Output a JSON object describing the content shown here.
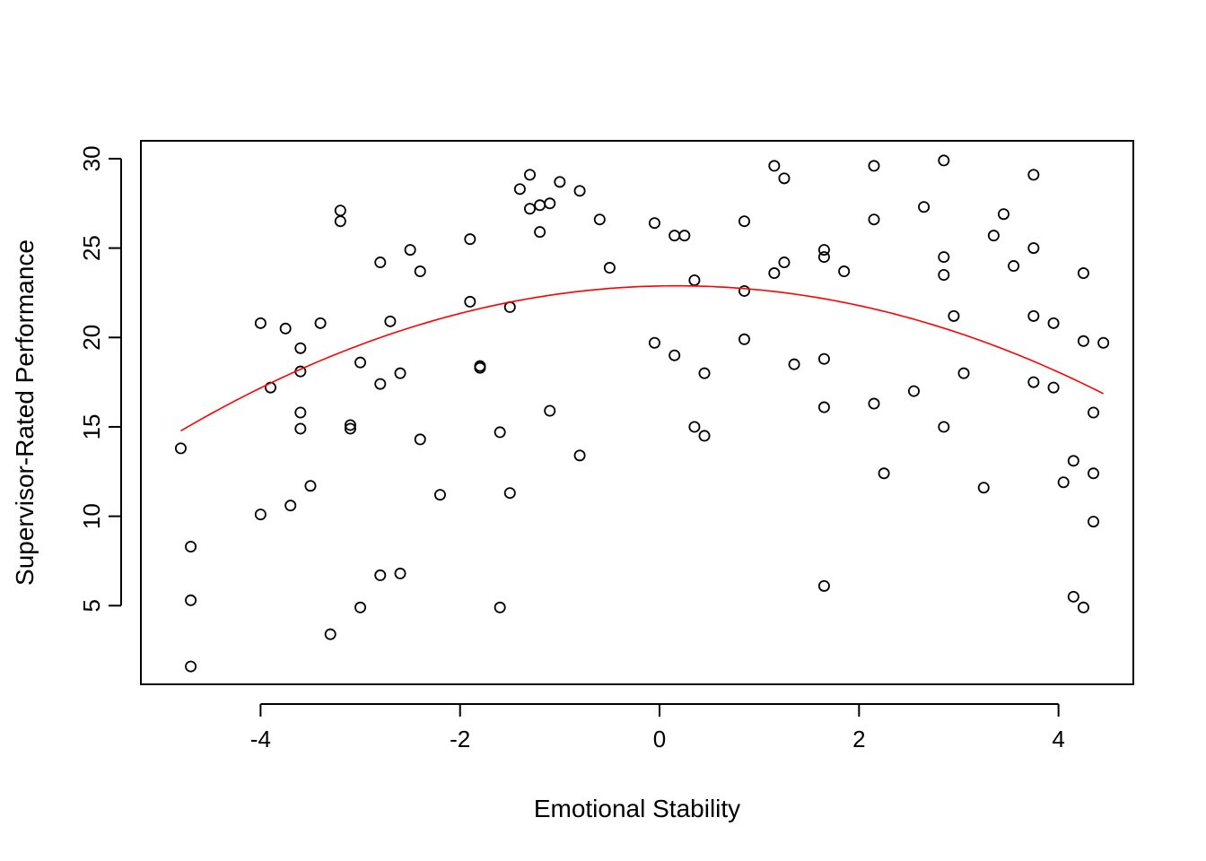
{
  "chart_data": {
    "type": "scatter",
    "xlabel": "Emotional Stability",
    "ylabel": "Supervisor-Rated Performance",
    "xlim": [
      -5.2,
      4.75
    ],
    "ylim": [
      0.6,
      31.0
    ],
    "x_ticks": [
      -4,
      -2,
      0,
      2,
      4
    ],
    "x_tick_labels": [
      "-4",
      "-2",
      "0",
      "2",
      "4"
    ],
    "y_ticks": [
      5,
      10,
      15,
      20,
      25,
      30
    ],
    "y_tick_labels": [
      "5",
      "10",
      "15",
      "20",
      "25",
      "30"
    ],
    "grid": false,
    "legend": "none",
    "colors": {
      "points": "#000000",
      "fit_line": "#ff0000",
      "frame": "#000000",
      "background": "#ffffff"
    },
    "points": [
      [
        -4.8,
        13.8
      ],
      [
        -4.7,
        8.3
      ],
      [
        -4.7,
        5.3
      ],
      [
        -4.7,
        1.6
      ],
      [
        -4.0,
        20.8
      ],
      [
        -4.0,
        10.1
      ],
      [
        -3.9,
        17.2
      ],
      [
        -3.75,
        20.5
      ],
      [
        -3.7,
        10.6
      ],
      [
        -3.6,
        19.4
      ],
      [
        -3.6,
        18.1
      ],
      [
        -3.6,
        15.8
      ],
      [
        -3.6,
        14.9
      ],
      [
        -3.5,
        11.7
      ],
      [
        -3.4,
        20.8
      ],
      [
        -3.3,
        3.4
      ],
      [
        -3.2,
        27.1
      ],
      [
        -3.2,
        26.5
      ],
      [
        -3.1,
        15.1
      ],
      [
        -3.1,
        14.9
      ],
      [
        -3.0,
        18.6
      ],
      [
        -3.0,
        4.9
      ],
      [
        -2.8,
        24.2
      ],
      [
        -2.8,
        17.4
      ],
      [
        -2.8,
        6.7
      ],
      [
        -2.7,
        20.9
      ],
      [
        -2.6,
        18.0
      ],
      [
        -2.6,
        6.8
      ],
      [
        -2.5,
        24.9
      ],
      [
        -2.4,
        23.7
      ],
      [
        -2.4,
        14.3
      ],
      [
        -2.2,
        11.2
      ],
      [
        -1.9,
        25.5
      ],
      [
        -1.9,
        22.0
      ],
      [
        -1.8,
        18.4
      ],
      [
        -1.8,
        18.3
      ],
      [
        -1.6,
        14.7
      ],
      [
        -1.6,
        4.9
      ],
      [
        -1.5,
        21.7
      ],
      [
        -1.5,
        11.3
      ],
      [
        -1.4,
        28.3
      ],
      [
        -1.3,
        29.1
      ],
      [
        -1.3,
        27.2
      ],
      [
        -1.2,
        27.4
      ],
      [
        -1.2,
        25.9
      ],
      [
        -1.1,
        27.5
      ],
      [
        -1.1,
        15.9
      ],
      [
        -1.0,
        28.7
      ],
      [
        -0.8,
        28.2
      ],
      [
        -0.8,
        13.4
      ],
      [
        -0.6,
        26.6
      ],
      [
        -0.5,
        23.9
      ],
      [
        -0.05,
        26.4
      ],
      [
        -0.05,
        19.7
      ],
      [
        0.15,
        25.7
      ],
      [
        0.15,
        19.0
      ],
      [
        0.25,
        25.7
      ],
      [
        0.35,
        23.2
      ],
      [
        0.35,
        15.0
      ],
      [
        0.45,
        18.0
      ],
      [
        0.45,
        14.5
      ],
      [
        0.85,
        26.5
      ],
      [
        0.85,
        22.6
      ],
      [
        0.85,
        19.9
      ],
      [
        1.15,
        29.6
      ],
      [
        1.15,
        23.6
      ],
      [
        1.25,
        28.9
      ],
      [
        1.25,
        24.2
      ],
      [
        1.35,
        18.5
      ],
      [
        1.65,
        24.9
      ],
      [
        1.65,
        24.5
      ],
      [
        1.65,
        18.8
      ],
      [
        1.65,
        16.1
      ],
      [
        1.65,
        6.1
      ],
      [
        1.85,
        23.7
      ],
      [
        2.15,
        29.6
      ],
      [
        2.15,
        26.6
      ],
      [
        2.15,
        16.3
      ],
      [
        2.25,
        12.4
      ],
      [
        2.55,
        17.0
      ],
      [
        2.65,
        27.3
      ],
      [
        2.85,
        29.9
      ],
      [
        2.85,
        24.5
      ],
      [
        2.85,
        23.5
      ],
      [
        2.85,
        15.0
      ],
      [
        2.95,
        21.2
      ],
      [
        3.05,
        18.0
      ],
      [
        3.25,
        11.6
      ],
      [
        3.35,
        25.7
      ],
      [
        3.45,
        26.9
      ],
      [
        3.55,
        24.0
      ],
      [
        3.75,
        29.1
      ],
      [
        3.75,
        25.0
      ],
      [
        3.75,
        21.2
      ],
      [
        3.75,
        17.5
      ],
      [
        3.95,
        20.8
      ],
      [
        3.95,
        17.2
      ],
      [
        4.05,
        11.9
      ],
      [
        4.15,
        13.1
      ],
      [
        4.15,
        5.5
      ],
      [
        4.25,
        23.6
      ],
      [
        4.25,
        19.8
      ],
      [
        4.25,
        4.9
      ],
      [
        4.35,
        15.8
      ],
      [
        4.35,
        12.4
      ],
      [
        4.35,
        9.7
      ],
      [
        4.45,
        19.7
      ]
    ],
    "fit_line": {
      "type": "quadratic",
      "x_range": [
        -4.8,
        4.45
      ],
      "coefficients": {
        "a": 22.88,
        "b": 0.11,
        "c": -0.3289
      }
    }
  }
}
